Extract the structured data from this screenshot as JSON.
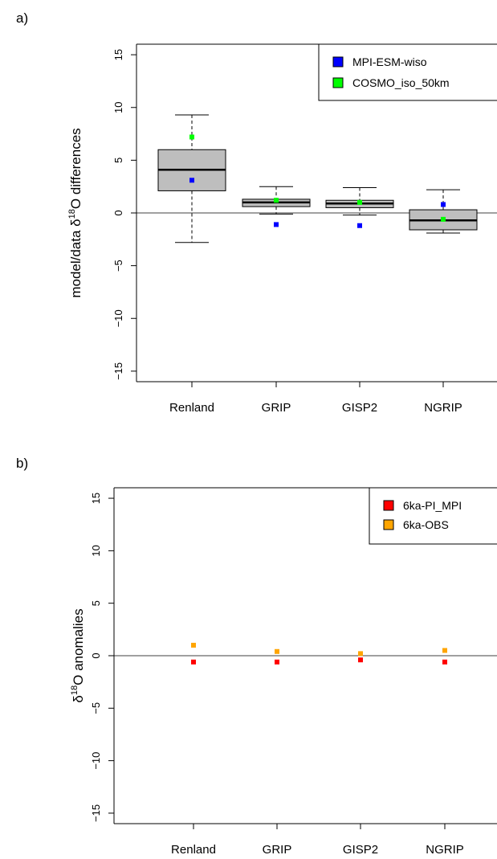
{
  "chart_data": [
    {
      "panel_label": "a)",
      "type": "box",
      "ylabel": "model/data δ18O differences",
      "ylabel_parts": {
        "pre": "model/data δ",
        "sup": "18",
        "post": "O differences"
      },
      "ylim": [
        -16,
        16
      ],
      "yticks": [
        -15,
        -10,
        -5,
        0,
        5,
        10,
        15
      ],
      "reference_line": 0,
      "categories": [
        "Renland",
        "GRIP",
        "GISP2",
        "NGRIP"
      ],
      "boxes": [
        {
          "category": "Renland",
          "whisker_low": -2.8,
          "q1": 2.1,
          "median": 4.1,
          "q3": 6.0,
          "whisker_high": 9.3
        },
        {
          "category": "GRIP",
          "whisker_low": -0.1,
          "q1": 0.6,
          "median": 1.0,
          "q3": 1.3,
          "whisker_high": 2.5
        },
        {
          "category": "GISP2",
          "whisker_low": -0.2,
          "q1": 0.5,
          "median": 0.9,
          "q3": 1.2,
          "whisker_high": 2.4
        },
        {
          "category": "NGRIP",
          "whisker_low": -1.9,
          "q1": -1.6,
          "median": -0.7,
          "q3": 0.3,
          "whisker_high": 2.2
        }
      ],
      "series": [
        {
          "name": "MPI-ESM-wiso",
          "color": "#0000ff",
          "values": [
            3.1,
            -1.1,
            -1.2,
            0.8
          ]
        },
        {
          "name": "COSMO_iso_50km",
          "color": "#00ff00",
          "values": [
            7.2,
            1.2,
            1.0,
            -0.6
          ]
        }
      ],
      "legend_position": "top-right"
    },
    {
      "panel_label": "b)",
      "type": "scatter",
      "ylabel": "δ18O anomalies",
      "ylabel_parts": {
        "pre": "δ",
        "sup": "18",
        "post": "O anomalies"
      },
      "ylim": [
        -16,
        16
      ],
      "yticks": [
        -15,
        -10,
        -5,
        0,
        5,
        10,
        15
      ],
      "reference_line": 0,
      "categories": [
        "Renland",
        "GRIP",
        "GISP2",
        "NGRIP"
      ],
      "series": [
        {
          "name": "6ka-PI_MPI",
          "color": "#ff0000",
          "values": [
            -0.6,
            -0.6,
            -0.4,
            -0.6
          ]
        },
        {
          "name": "6ka-OBS",
          "color": "#ffa500",
          "values": [
            1.0,
            0.4,
            0.2,
            0.5
          ]
        }
      ],
      "legend_position": "top-right"
    }
  ]
}
